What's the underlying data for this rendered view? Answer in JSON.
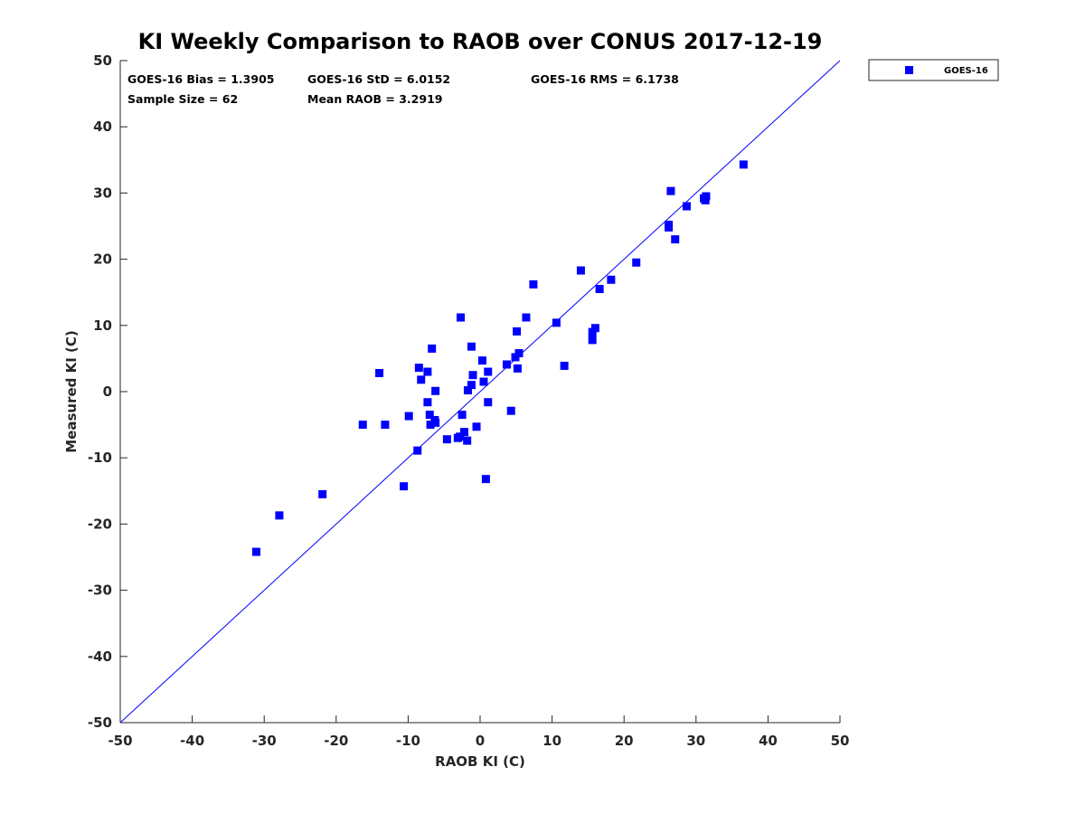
{
  "chart_data": {
    "type": "scatter",
    "title": "KI Weekly Comparison to RAOB over CONUS 2017-12-19",
    "xlabel": "RAOB KI (C)",
    "ylabel": "Measured KI (C)",
    "xlim": [
      -50,
      50
    ],
    "ylim": [
      -50,
      50
    ],
    "xticks": [
      -50,
      -40,
      -30,
      -20,
      -10,
      0,
      10,
      20,
      30,
      40,
      50
    ],
    "yticks": [
      -50,
      -40,
      -30,
      -20,
      -10,
      0,
      10,
      20,
      30,
      40,
      50
    ],
    "grid": false,
    "legend_position": "outside-top-right",
    "reference_line": {
      "name": "1:1 line",
      "from": [
        -50,
        -50
      ],
      "to": [
        50,
        50
      ],
      "color": "#0000ff"
    },
    "stats": [
      {
        "label": "GOES-16 Bias = 1.3905"
      },
      {
        "label": "GOES-16 StD = 6.0152"
      },
      {
        "label": "GOES-16 RMS = 6.1738"
      },
      {
        "label": "Sample Size = 62"
      },
      {
        "label": "Mean RAOB = 3.2919"
      }
    ],
    "series": [
      {
        "name": "GOES-16",
        "color": "#0000ff",
        "marker": "square",
        "points": [
          [
            -31.1,
            -24.2
          ],
          [
            -27.9,
            -18.7
          ],
          [
            -21.9,
            -15.5
          ],
          [
            -16.3,
            -5.0
          ],
          [
            -14.0,
            2.8
          ],
          [
            -13.2,
            -5.0
          ],
          [
            -10.6,
            -14.3
          ],
          [
            -9.9,
            -3.7
          ],
          [
            -8.7,
            -8.9
          ],
          [
            -8.5,
            3.6
          ],
          [
            -8.2,
            1.8
          ],
          [
            -7.3,
            3.0
          ],
          [
            -7.3,
            -1.6
          ],
          [
            -7.0,
            -3.5
          ],
          [
            -6.9,
            -5.0
          ],
          [
            -6.7,
            6.5
          ],
          [
            -6.3,
            -4.3
          ],
          [
            -6.2,
            -4.7
          ],
          [
            -6.2,
            0.1
          ],
          [
            -4.6,
            -7.2
          ],
          [
            -3.1,
            -7.0
          ],
          [
            -2.8,
            -6.8
          ],
          [
            -2.7,
            11.2
          ],
          [
            -2.5,
            -3.5
          ],
          [
            -2.2,
            -6.1
          ],
          [
            -1.8,
            -7.4
          ],
          [
            -1.7,
            0.2
          ],
          [
            -1.2,
            6.8
          ],
          [
            -1.2,
            1.0
          ],
          [
            -1.0,
            2.5
          ],
          [
            -0.5,
            -5.3
          ],
          [
            0.3,
            4.7
          ],
          [
            0.5,
            1.5
          ],
          [
            0.8,
            -13.2
          ],
          [
            1.1,
            3.0
          ],
          [
            1.1,
            -1.6
          ],
          [
            3.7,
            4.1
          ],
          [
            4.3,
            -2.9
          ],
          [
            4.9,
            5.2
          ],
          [
            5.1,
            9.1
          ],
          [
            5.2,
            3.5
          ],
          [
            5.4,
            5.8
          ],
          [
            6.4,
            11.2
          ],
          [
            7.4,
            16.2
          ],
          [
            10.6,
            10.4
          ],
          [
            11.7,
            3.9
          ],
          [
            14.0,
            18.3
          ],
          [
            15.6,
            9.0
          ],
          [
            15.6,
            7.8
          ],
          [
            16.0,
            9.6
          ],
          [
            16.6,
            15.5
          ],
          [
            18.2,
            16.9
          ],
          [
            21.7,
            19.5
          ],
          [
            26.2,
            25.2
          ],
          [
            26.2,
            24.8
          ],
          [
            26.5,
            30.3
          ],
          [
            27.1,
            23.0
          ],
          [
            28.7,
            28.0
          ],
          [
            31.1,
            29.2
          ],
          [
            31.3,
            28.9
          ],
          [
            31.4,
            29.5
          ],
          [
            36.6,
            34.3
          ]
        ]
      }
    ]
  }
}
